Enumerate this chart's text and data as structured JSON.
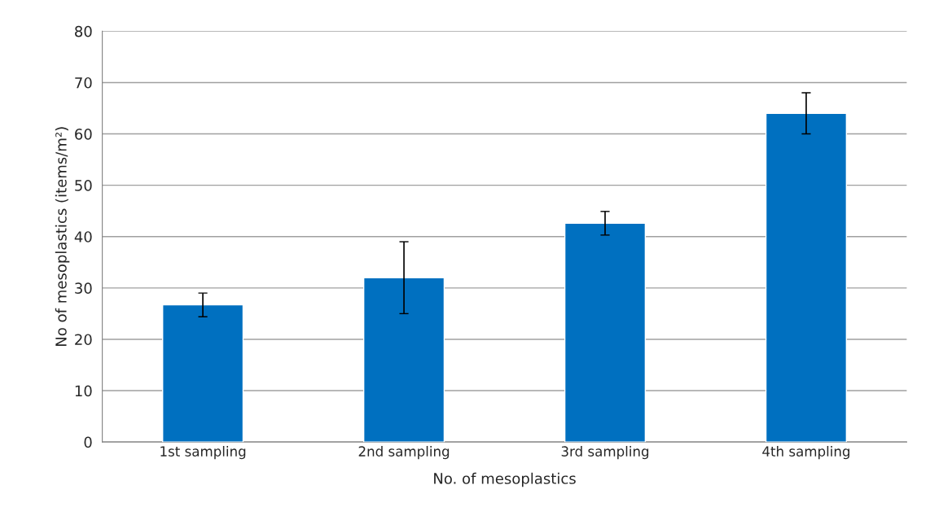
{
  "chart_data": {
    "type": "bar",
    "xlabel": "No. of mesoplastics",
    "ylabel": "No of mesoplastics (items/m²)",
    "categories": [
      "1st sampling",
      "2nd sampling",
      "3rd sampling",
      "4th sampling"
    ],
    "values": [
      26.7,
      32,
      42.6,
      64
    ],
    "errors": [
      2.3,
      7,
      2.3,
      4
    ],
    "color": "#0070c0",
    "ylim": [
      0,
      80
    ],
    "yticks": [
      0,
      10,
      20,
      30,
      40,
      50,
      60,
      70,
      80
    ],
    "grid": "y"
  }
}
